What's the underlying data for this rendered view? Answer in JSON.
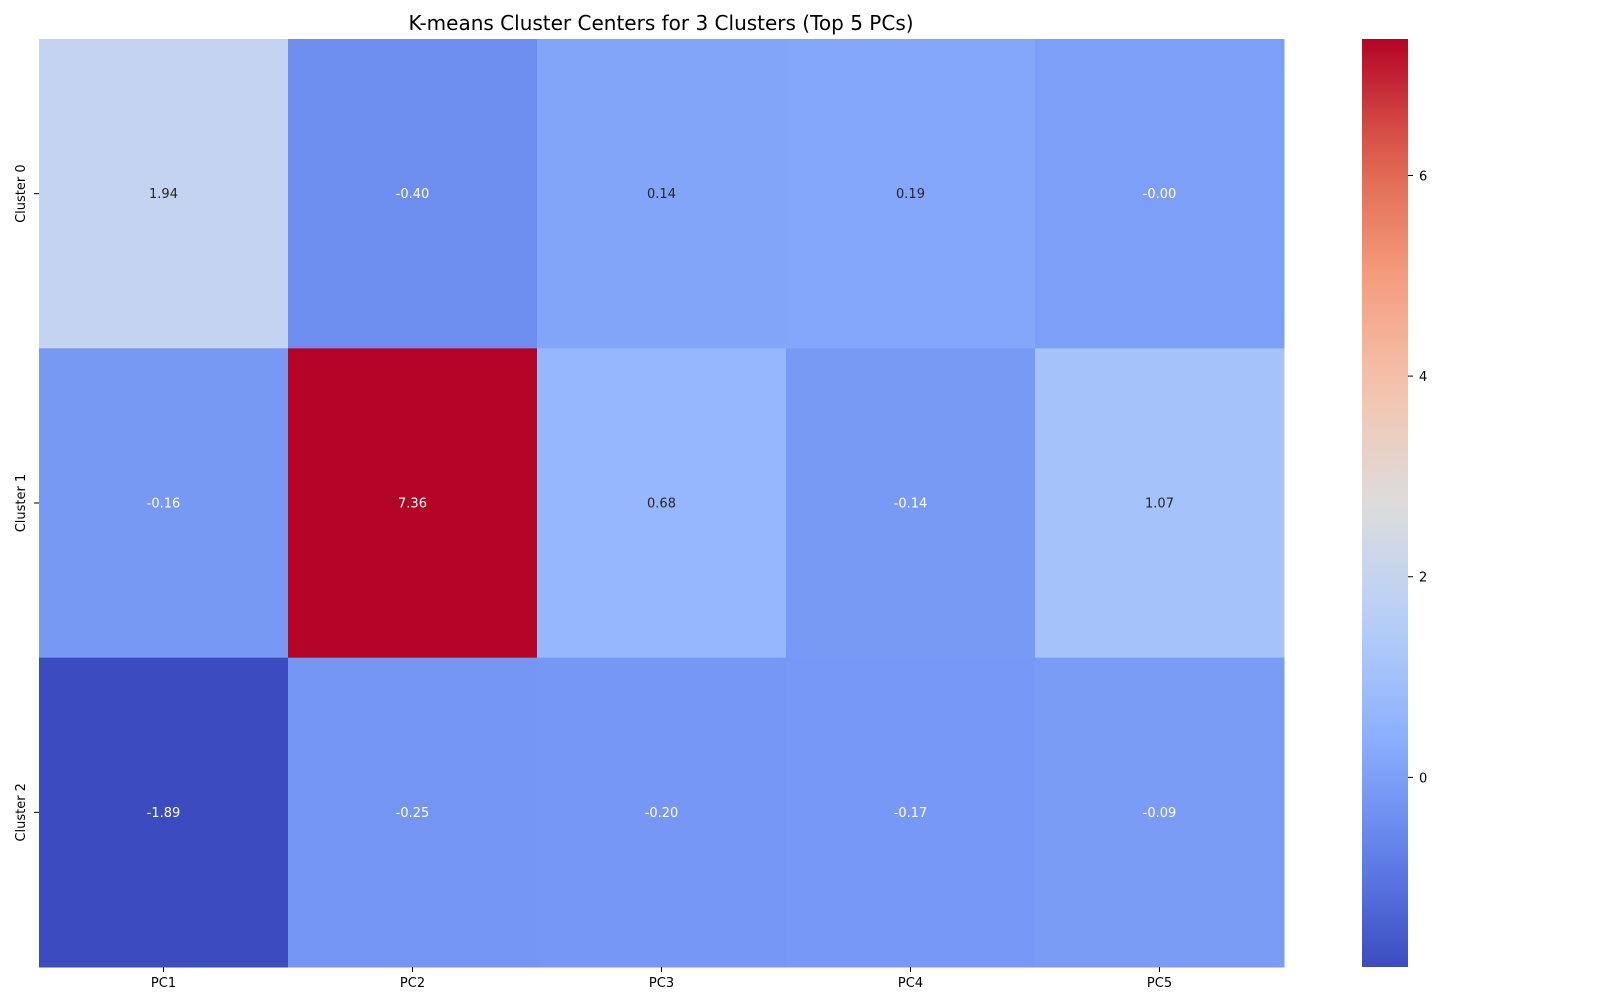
{
  "chart_data": {
    "type": "heatmap",
    "title": "K-means Cluster Centers for 3 Clusters (Top 5 PCs)",
    "xlabel": "",
    "ylabel": "",
    "x_categories": [
      "PC1",
      "PC2",
      "PC3",
      "PC4",
      "PC5"
    ],
    "y_categories": [
      "Cluster 0",
      "Cluster 1",
      "Cluster 2"
    ],
    "values": [
      [
        1.94,
        -0.4,
        0.14,
        0.19,
        -0.0
      ],
      [
        -0.16,
        7.36,
        0.68,
        -0.14,
        1.07
      ],
      [
        -1.89,
        -0.25,
        -0.2,
        -0.17,
        -0.09
      ]
    ],
    "cell_labels": [
      [
        "1.94",
        "-0.40",
        "0.14",
        "0.19",
        "-0.00"
      ],
      [
        "-0.16",
        "7.36",
        "0.68",
        "-0.14",
        "1.07"
      ],
      [
        "-1.89",
        "-0.25",
        "-0.20",
        "-0.17",
        "-0.09"
      ]
    ],
    "colormap": "coolwarm",
    "color_range": [
      -1.89,
      7.36
    ],
    "colorbar_ticks": [
      0,
      2,
      4,
      6
    ],
    "colorbar_tick_labels": [
      "0",
      "2",
      "4",
      "6"
    ],
    "grid": false,
    "legend": "colorbar-right"
  },
  "colors": {
    "cold": "#3b4cc0",
    "neutral": "#dddcdc",
    "hot": "#b40426",
    "dark_text": "#262626",
    "light_text": "#ffffff"
  }
}
